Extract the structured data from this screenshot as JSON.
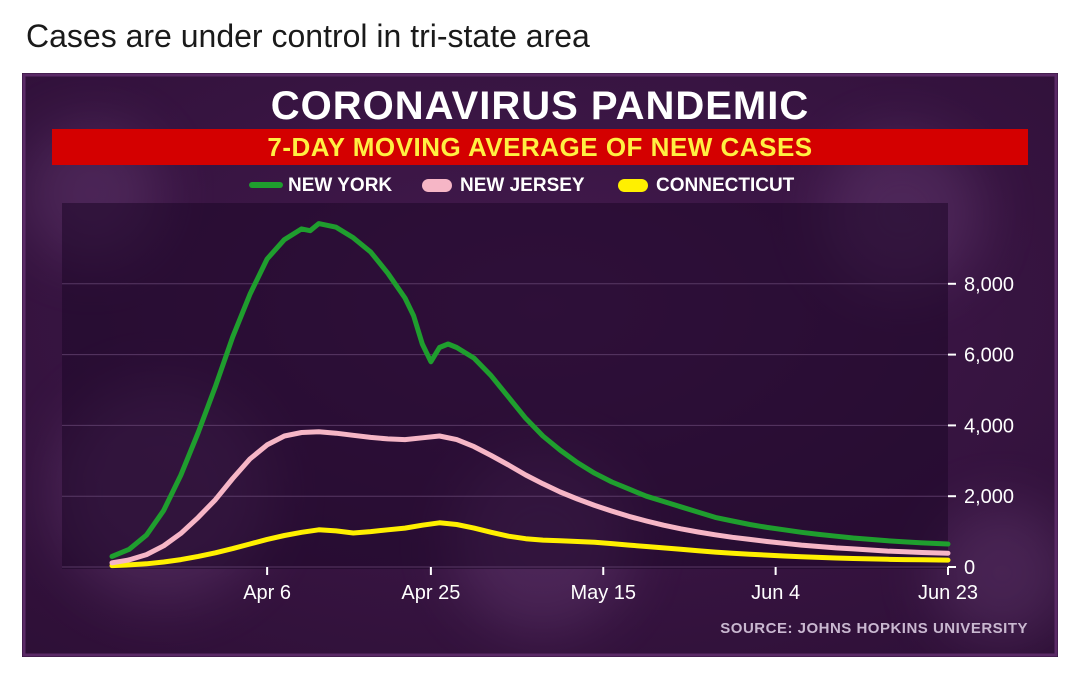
{
  "headline": "Cases are under control in tri-state area",
  "chart": {
    "type": "line",
    "title_main": "CORONAVIRUS PANDEMIC",
    "title_sub": "7-DAY MOVING AVERAGE OF NEW CASES",
    "title_main_fontsize": 40,
    "title_sub_fontsize": 26,
    "title_main_color": "#ffffff",
    "title_sub_color": "#fff042",
    "subtitle_bg": "#d40000",
    "panel_bg_outer_top": "#431a4e",
    "panel_bg_outer_bottom": "#2d0f36",
    "panel_border_color": "#5a2a66",
    "plot_bg": "rgba(30,8,40,0.55)",
    "gridline_color": "#6b4a78",
    "axis_label_color": "#ffffff",
    "axis_fontsize": 20,
    "legend_fontsize": 19,
    "source_text": "SOURCE: JOHNS HOPKINS UNIVERSITY",
    "source_color": "#c9b8d0",
    "source_fontsize": 15,
    "line_width": 5,
    "ylim": [
      0,
      10000
    ],
    "yticks": [
      0,
      2000,
      4000,
      6000,
      8000
    ],
    "ytick_labels": [
      "0",
      "2,000",
      "4,000",
      "6,000",
      "8,000"
    ],
    "x_range_days": 97,
    "xticks_days": [
      18,
      37,
      57,
      77,
      97
    ],
    "xtick_labels": [
      "Apr 6",
      "Apr 25",
      "May 15",
      "Jun 4",
      "Jun 23"
    ],
    "legend": [
      {
        "name": "NEW YORK",
        "color": "#1f9e2e",
        "swatch": "line"
      },
      {
        "name": "NEW JERSEY",
        "color": "#f6b6c6",
        "swatch": "lozenge"
      },
      {
        "name": "CONNECTICUT",
        "color": "#fff000",
        "swatch": "lozenge"
      }
    ],
    "series": {
      "new_york": {
        "color": "#1f9e2e",
        "points": [
          [
            0,
            300
          ],
          [
            2,
            500
          ],
          [
            4,
            900
          ],
          [
            6,
            1600
          ],
          [
            8,
            2600
          ],
          [
            10,
            3800
          ],
          [
            12,
            5100
          ],
          [
            14,
            6500
          ],
          [
            16,
            7700
          ],
          [
            18,
            8700
          ],
          [
            20,
            9250
          ],
          [
            22,
            9550
          ],
          [
            23,
            9500
          ],
          [
            24,
            9700
          ],
          [
            26,
            9600
          ],
          [
            28,
            9300
          ],
          [
            30,
            8900
          ],
          [
            32,
            8300
          ],
          [
            34,
            7600
          ],
          [
            35,
            7100
          ],
          [
            36,
            6300
          ],
          [
            37,
            5800
          ],
          [
            38,
            6200
          ],
          [
            39,
            6300
          ],
          [
            40,
            6200
          ],
          [
            42,
            5900
          ],
          [
            44,
            5400
          ],
          [
            46,
            4800
          ],
          [
            48,
            4200
          ],
          [
            50,
            3700
          ],
          [
            52,
            3300
          ],
          [
            54,
            2950
          ],
          [
            56,
            2650
          ],
          [
            58,
            2400
          ],
          [
            60,
            2200
          ],
          [
            62,
            2000
          ],
          [
            64,
            1850
          ],
          [
            66,
            1700
          ],
          [
            68,
            1550
          ],
          [
            70,
            1400
          ],
          [
            72,
            1300
          ],
          [
            74,
            1200
          ],
          [
            76,
            1120
          ],
          [
            78,
            1050
          ],
          [
            80,
            980
          ],
          [
            82,
            920
          ],
          [
            84,
            870
          ],
          [
            86,
            820
          ],
          [
            88,
            780
          ],
          [
            90,
            740
          ],
          [
            92,
            710
          ],
          [
            94,
            680
          ],
          [
            96,
            660
          ],
          [
            97,
            650
          ]
        ]
      },
      "new_jersey": {
        "color": "#f6b6c6",
        "points": [
          [
            0,
            120
          ],
          [
            2,
            200
          ],
          [
            4,
            350
          ],
          [
            6,
            600
          ],
          [
            8,
            950
          ],
          [
            10,
            1400
          ],
          [
            12,
            1900
          ],
          [
            14,
            2500
          ],
          [
            16,
            3050
          ],
          [
            18,
            3450
          ],
          [
            20,
            3700
          ],
          [
            22,
            3800
          ],
          [
            24,
            3820
          ],
          [
            26,
            3780
          ],
          [
            28,
            3720
          ],
          [
            30,
            3660
          ],
          [
            32,
            3620
          ],
          [
            34,
            3600
          ],
          [
            36,
            3650
          ],
          [
            38,
            3700
          ],
          [
            40,
            3600
          ],
          [
            42,
            3400
          ],
          [
            44,
            3150
          ],
          [
            46,
            2880
          ],
          [
            48,
            2600
          ],
          [
            50,
            2350
          ],
          [
            52,
            2120
          ],
          [
            54,
            1920
          ],
          [
            56,
            1740
          ],
          [
            58,
            1580
          ],
          [
            60,
            1430
          ],
          [
            62,
            1300
          ],
          [
            64,
            1180
          ],
          [
            66,
            1080
          ],
          [
            68,
            990
          ],
          [
            70,
            910
          ],
          [
            72,
            840
          ],
          [
            74,
            780
          ],
          [
            76,
            720
          ],
          [
            78,
            670
          ],
          [
            80,
            620
          ],
          [
            82,
            580
          ],
          [
            84,
            540
          ],
          [
            86,
            510
          ],
          [
            88,
            480
          ],
          [
            90,
            450
          ],
          [
            92,
            430
          ],
          [
            94,
            410
          ],
          [
            96,
            395
          ],
          [
            97,
            390
          ]
        ]
      },
      "connecticut": {
        "color": "#fff000",
        "points": [
          [
            0,
            40
          ],
          [
            2,
            60
          ],
          [
            4,
            90
          ],
          [
            6,
            140
          ],
          [
            8,
            210
          ],
          [
            10,
            300
          ],
          [
            12,
            400
          ],
          [
            14,
            520
          ],
          [
            16,
            650
          ],
          [
            18,
            780
          ],
          [
            20,
            890
          ],
          [
            22,
            980
          ],
          [
            24,
            1050
          ],
          [
            26,
            1020
          ],
          [
            28,
            960
          ],
          [
            30,
            1000
          ],
          [
            32,
            1050
          ],
          [
            34,
            1100
          ],
          [
            36,
            1180
          ],
          [
            38,
            1250
          ],
          [
            40,
            1200
          ],
          [
            42,
            1100
          ],
          [
            44,
            980
          ],
          [
            46,
            870
          ],
          [
            48,
            800
          ],
          [
            50,
            760
          ],
          [
            52,
            740
          ],
          [
            54,
            720
          ],
          [
            56,
            700
          ],
          [
            58,
            660
          ],
          [
            60,
            620
          ],
          [
            62,
            580
          ],
          [
            64,
            540
          ],
          [
            66,
            500
          ],
          [
            68,
            460
          ],
          [
            70,
            420
          ],
          [
            72,
            390
          ],
          [
            74,
            360
          ],
          [
            76,
            335
          ],
          [
            78,
            310
          ],
          [
            80,
            290
          ],
          [
            82,
            270
          ],
          [
            84,
            255
          ],
          [
            86,
            240
          ],
          [
            88,
            228
          ],
          [
            90,
            218
          ],
          [
            92,
            210
          ],
          [
            94,
            203
          ],
          [
            96,
            198
          ],
          [
            97,
            195
          ]
        ]
      }
    }
  }
}
